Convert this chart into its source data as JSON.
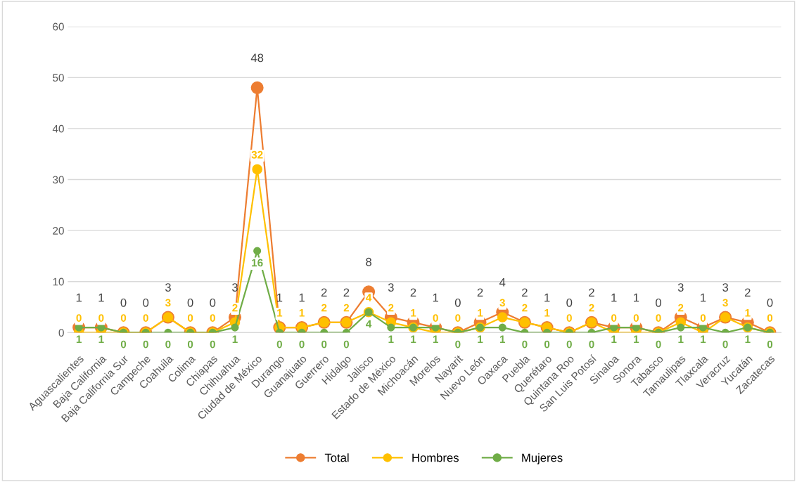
{
  "chart_data": {
    "type": "line",
    "categories": [
      "Aguascalientes",
      "Baja California",
      "Baja California Sur",
      "Campeche",
      "Coahuila",
      "Colima",
      "Chiapas",
      "Chihuahua",
      "Ciudad de México",
      "Durango",
      "Guanajuato",
      "Guerrero",
      "Hidalgo",
      "Jalisco",
      "Estado de México",
      "Michoacán",
      "Morelos",
      "Nayarit",
      "Nuevo León",
      "Oaxaca",
      "Puebla",
      "Querétaro",
      "Quintana Roo",
      "San Luis Potosí",
      "Sinaloa",
      "Sonora",
      "Tabasco",
      "Tamaulipas",
      "Tlaxcala",
      "Veracruz",
      "Yucatán",
      "Zacatecas"
    ],
    "series": [
      {
        "name": "Total",
        "color": "#ed7d31",
        "values": [
          1,
          1,
          0,
          0,
          3,
          0,
          0,
          3,
          48,
          1,
          1,
          2,
          2,
          8,
          3,
          2,
          1,
          0,
          2,
          4,
          2,
          1,
          0,
          2,
          1,
          1,
          0,
          3,
          1,
          3,
          2,
          0
        ]
      },
      {
        "name": "Hombres",
        "color": "#ffc000",
        "values": [
          0,
          0,
          0,
          0,
          3,
          0,
          0,
          2,
          32,
          1,
          1,
          2,
          2,
          4,
          2,
          1,
          0,
          0,
          1,
          3,
          2,
          1,
          0,
          2,
          0,
          0,
          0,
          2,
          0,
          3,
          1,
          0
        ]
      },
      {
        "name": "Mujeres",
        "color": "#70ad47",
        "values": [
          1,
          1,
          0,
          0,
          0,
          0,
          0,
          1,
          16,
          0,
          0,
          0,
          0,
          4,
          1,
          1,
          1,
          0,
          1,
          1,
          0,
          0,
          0,
          0,
          1,
          1,
          0,
          1,
          1,
          0,
          1,
          0
        ]
      }
    ],
    "ylim": [
      0,
      60
    ],
    "yticks": [
      0,
      10,
      20,
      30,
      40,
      50,
      60
    ],
    "grid": "y",
    "legend": "bottom",
    "marker": "circle",
    "line_style": "solid",
    "data_labels": true
  }
}
